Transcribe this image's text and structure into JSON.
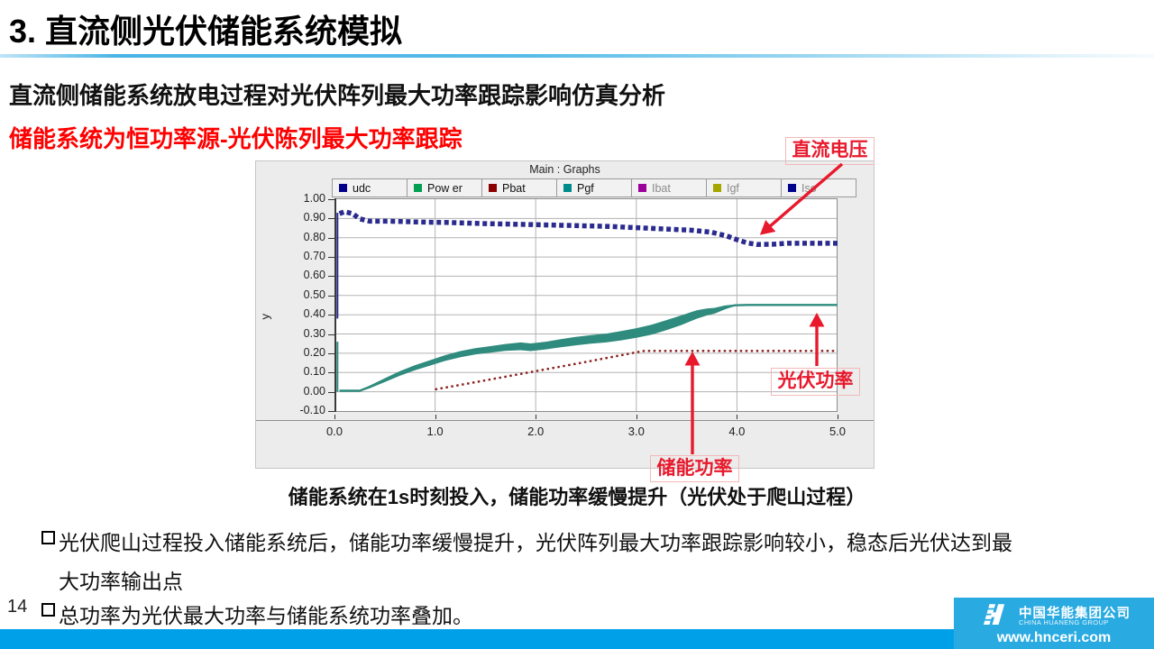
{
  "slide": {
    "title": "3. 直流侧光伏储能系统模拟",
    "subtitle": "直流侧储能系统放电过程对光伏阵列最大功率跟踪影响仿真分析",
    "highlight": "储能系统为恒功率源-光伏陈列最大功率跟踪",
    "caption": "储能系统在1s时刻投入，储能功率缓慢提升（光伏处于爬山过程）",
    "bullets": [
      "光伏爬山过程投入储能系统后，储能功率缓慢提升，光伏阵列最大功率跟踪影响较小，稳态后光伏达到最大功率输出点",
      "总功率为光伏最大功率与储能系统功率叠加。"
    ],
    "page_number": "14",
    "highlight_color": "#fe0000"
  },
  "annotations": {
    "dc_voltage": "直流电压",
    "pv_power": "光伏功率",
    "storage_power": "储能功率",
    "color": "#e8192c"
  },
  "footer": {
    "company_cn": "中国华能集团公司",
    "company_en": "CHINA HUANENG GROUP",
    "website": "www.hnceri.com",
    "bar_color": "#00a0e9",
    "box_color": "#29abe2"
  },
  "chart_data": {
    "type": "line",
    "title": "Main : Graphs",
    "ylabel": "y",
    "xlabel": "",
    "xlim": [
      0.0,
      5.0
    ],
    "ylim": [
      -0.1,
      1.0
    ],
    "grid": true,
    "x_ticks": [
      "0.0",
      "1.0",
      "2.0",
      "3.0",
      "4.0",
      "5.0"
    ],
    "y_ticks": [
      "1.00",
      "0.90",
      "0.80",
      "0.70",
      "0.60",
      "0.50",
      "0.40",
      "0.30",
      "0.20",
      "0.10",
      "0.00",
      "-0.10"
    ],
    "legend": [
      {
        "name": "udc",
        "color": "#00008b",
        "active": true
      },
      {
        "name": "Pow er",
        "color": "#00a050",
        "active": true
      },
      {
        "name": "Pbat",
        "color": "#8b0000",
        "active": true
      },
      {
        "name": "Pgf",
        "color": "#008b8b",
        "active": true
      },
      {
        "name": "Ibat",
        "color": "#9b009b",
        "active": false
      },
      {
        "name": "Igf",
        "color": "#a6a600",
        "active": false
      },
      {
        "name": "Iso",
        "color": "#00008b",
        "active": false
      }
    ],
    "series": [
      {
        "name": "udc",
        "color": "#2b2b8f",
        "style": "dashed-thick",
        "transient": {
          "t": 0.03,
          "v": [
            0.38,
            0.93
          ]
        },
        "points": [
          [
            0.05,
            0.925
          ],
          [
            0.1,
            0.935
          ],
          [
            0.18,
            0.925
          ],
          [
            0.25,
            0.898
          ],
          [
            0.35,
            0.886
          ],
          [
            0.55,
            0.886
          ],
          [
            0.8,
            0.882
          ],
          [
            1.1,
            0.879
          ],
          [
            1.5,
            0.873
          ],
          [
            1.9,
            0.869
          ],
          [
            2.3,
            0.864
          ],
          [
            2.7,
            0.859
          ],
          [
            3.0,
            0.852
          ],
          [
            3.3,
            0.845
          ],
          [
            3.55,
            0.839
          ],
          [
            3.75,
            0.828
          ],
          [
            3.9,
            0.809
          ],
          [
            4.0,
            0.79
          ],
          [
            4.1,
            0.773
          ],
          [
            4.2,
            0.765
          ],
          [
            4.35,
            0.766
          ],
          [
            4.5,
            0.771
          ],
          [
            5.0,
            0.771
          ]
        ]
      },
      {
        "name": "Pgf",
        "color": "#2f8b7e",
        "style": "noisy-band",
        "transient": {
          "t": 0.03,
          "v": [
            0.0,
            0.26
          ]
        },
        "points": [
          [
            0.05,
            0.005,
            0.004
          ],
          [
            0.25,
            0.005,
            0.004
          ],
          [
            0.35,
            0.025,
            0.007
          ],
          [
            0.5,
            0.06,
            0.01
          ],
          [
            0.65,
            0.095,
            0.012
          ],
          [
            0.8,
            0.125,
            0.013
          ],
          [
            0.95,
            0.15,
            0.014
          ],
          [
            1.1,
            0.175,
            0.015
          ],
          [
            1.25,
            0.195,
            0.016
          ],
          [
            1.4,
            0.21,
            0.016
          ],
          [
            1.55,
            0.22,
            0.017
          ],
          [
            1.7,
            0.23,
            0.018
          ],
          [
            1.85,
            0.236,
            0.02
          ],
          [
            1.95,
            0.231,
            0.02
          ],
          [
            2.1,
            0.24,
            0.02
          ],
          [
            2.25,
            0.252,
            0.021
          ],
          [
            2.4,
            0.263,
            0.022
          ],
          [
            2.55,
            0.272,
            0.022
          ],
          [
            2.7,
            0.279,
            0.023
          ],
          [
            2.85,
            0.291,
            0.024
          ],
          [
            3.0,
            0.305,
            0.025
          ],
          [
            3.15,
            0.322,
            0.026
          ],
          [
            3.3,
            0.346,
            0.026
          ],
          [
            3.45,
            0.372,
            0.025
          ],
          [
            3.6,
            0.401,
            0.022
          ],
          [
            3.7,
            0.414,
            0.018
          ],
          [
            3.78,
            0.421,
            0.015
          ],
          [
            3.88,
            0.438,
            0.01
          ],
          [
            3.98,
            0.449,
            0.004
          ],
          [
            4.1,
            0.451,
            0.002
          ],
          [
            5.0,
            0.451,
            0.002
          ]
        ]
      },
      {
        "name": "Pbat",
        "color": "#8b1d1d",
        "style": "dotted",
        "points": [
          [
            1.0,
            0.012
          ],
          [
            1.35,
            0.045
          ],
          [
            1.7,
            0.078
          ],
          [
            2.05,
            0.112
          ],
          [
            2.4,
            0.145
          ],
          [
            2.75,
            0.18
          ],
          [
            3.0,
            0.205
          ],
          [
            3.08,
            0.212
          ],
          [
            5.0,
            0.212
          ]
        ]
      }
    ]
  }
}
